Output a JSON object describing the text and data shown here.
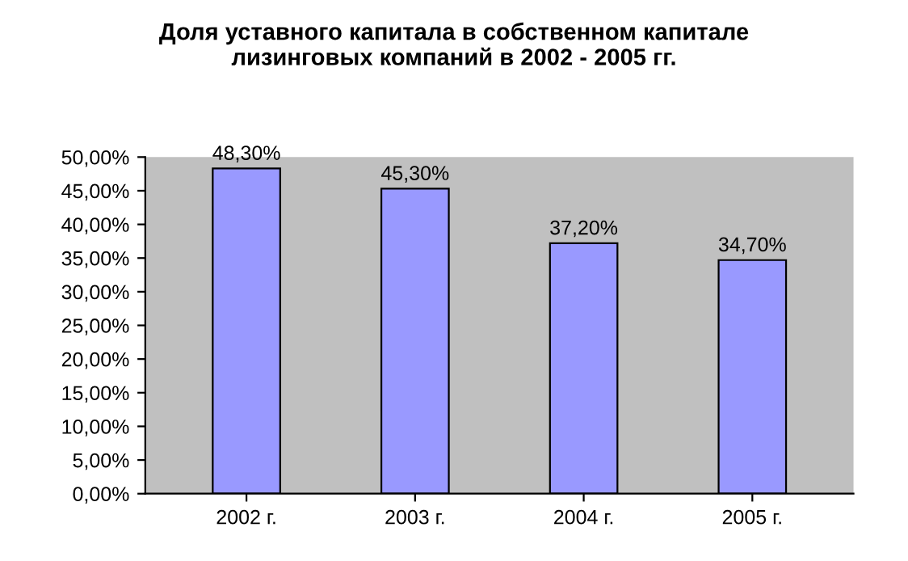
{
  "chart_data": {
    "type": "bar",
    "title": "Доля уставного капитала в собственном капитале\nлизинговых компаний в 2002 - 2005 гг.",
    "categories": [
      "2002 г.",
      "2003 г.",
      "2004 г.",
      "2005 г."
    ],
    "values": [
      48.3,
      45.3,
      37.2,
      34.7
    ],
    "value_labels": [
      "48,30%",
      "45,30%",
      "37,20%",
      "34,70%"
    ],
    "color": "#9999ff",
    "ylim": [
      0,
      50
    ],
    "yticks": [
      {
        "value": 0,
        "label": "0,00%"
      },
      {
        "value": 5,
        "label": "5,00%"
      },
      {
        "value": 10,
        "label": "10,00%"
      },
      {
        "value": 15,
        "label": "15,00%"
      },
      {
        "value": 20,
        "label": "20,00%"
      },
      {
        "value": 25,
        "label": "25,00%"
      },
      {
        "value": 30,
        "label": "30,00%"
      },
      {
        "value": 35,
        "label": "35,00%"
      },
      {
        "value": 40,
        "label": "40,00%"
      },
      {
        "value": 45,
        "label": "45,00%"
      },
      {
        "value": 50,
        "label": "50,00%"
      }
    ],
    "grid": false
  }
}
